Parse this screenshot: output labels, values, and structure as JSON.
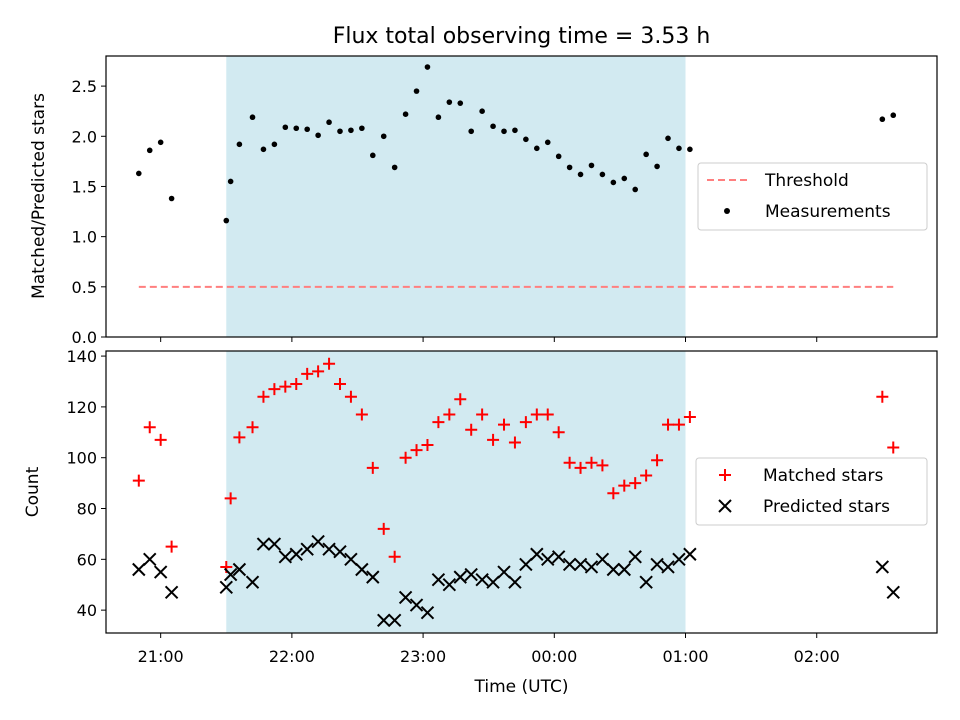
{
  "chart_data": [
    {
      "type": "scatter",
      "title": "Flux total observing time = 3.53 h",
      "ylabel": "Matched/Predicted stars",
      "xlabel": "",
      "ylim": [
        0,
        2.8
      ],
      "xlim": [
        "20:35",
        "02:55"
      ],
      "yticks": [
        "0.0",
        "0.5",
        "1.0",
        "1.5",
        "2.0",
        "2.5"
      ],
      "x_tick_labels_shown": false,
      "legend_position": "center-right",
      "shaded_interval": {
        "from": "21:30",
        "to": "01:00"
      },
      "series": [
        {
          "name": "Threshold",
          "style": "dashed-line",
          "color": "#ff7f7f",
          "points": [
            {
              "x": "20:50",
              "y": 0.5
            },
            {
              "x": "02:35",
              "y": 0.5
            }
          ]
        },
        {
          "name": "Measurements",
          "style": "dot",
          "color": "#000000",
          "points": [
            {
              "x": "20:50",
              "y": 1.63
            },
            {
              "x": "20:55",
              "y": 1.86
            },
            {
              "x": "21:00",
              "y": 1.94
            },
            {
              "x": "21:05",
              "y": 1.38
            },
            {
              "x": "21:30",
              "y": 1.16
            },
            {
              "x": "21:32",
              "y": 1.55
            },
            {
              "x": "21:36",
              "y": 1.92
            },
            {
              "x": "21:42",
              "y": 2.19
            },
            {
              "x": "21:47",
              "y": 1.87
            },
            {
              "x": "21:52",
              "y": 1.92
            },
            {
              "x": "21:57",
              "y": 2.09
            },
            {
              "x": "22:02",
              "y": 2.08
            },
            {
              "x": "22:07",
              "y": 2.07
            },
            {
              "x": "22:12",
              "y": 2.01
            },
            {
              "x": "22:17",
              "y": 2.14
            },
            {
              "x": "22:22",
              "y": 2.05
            },
            {
              "x": "22:27",
              "y": 2.06
            },
            {
              "x": "22:32",
              "y": 2.08
            },
            {
              "x": "22:37",
              "y": 1.81
            },
            {
              "x": "22:42",
              "y": 2.0
            },
            {
              "x": "22:47",
              "y": 1.69
            },
            {
              "x": "22:52",
              "y": 2.22
            },
            {
              "x": "22:57",
              "y": 2.45
            },
            {
              "x": "23:02",
              "y": 2.69
            },
            {
              "x": "23:07",
              "y": 2.19
            },
            {
              "x": "23:12",
              "y": 2.34
            },
            {
              "x": "23:17",
              "y": 2.33
            },
            {
              "x": "23:22",
              "y": 2.05
            },
            {
              "x": "23:27",
              "y": 2.25
            },
            {
              "x": "23:32",
              "y": 2.1
            },
            {
              "x": "23:37",
              "y": 2.05
            },
            {
              "x": "23:42",
              "y": 2.06
            },
            {
              "x": "23:47",
              "y": 1.97
            },
            {
              "x": "23:52",
              "y": 1.88
            },
            {
              "x": "23:57",
              "y": 1.94
            },
            {
              "x": "00:02",
              "y": 1.8
            },
            {
              "x": "00:07",
              "y": 1.69
            },
            {
              "x": "00:12",
              "y": 1.62
            },
            {
              "x": "00:17",
              "y": 1.71
            },
            {
              "x": "00:22",
              "y": 1.62
            },
            {
              "x": "00:27",
              "y": 1.54
            },
            {
              "x": "00:32",
              "y": 1.58
            },
            {
              "x": "00:37",
              "y": 1.47
            },
            {
              "x": "00:42",
              "y": 1.82
            },
            {
              "x": "00:47",
              "y": 1.7
            },
            {
              "x": "00:52",
              "y": 1.98
            },
            {
              "x": "00:57",
              "y": 1.88
            },
            {
              "x": "01:02",
              "y": 1.87
            },
            {
              "x": "02:30",
              "y": 2.17
            },
            {
              "x": "02:35",
              "y": 2.21
            }
          ]
        }
      ]
    },
    {
      "type": "scatter",
      "title": "",
      "ylabel": "Count",
      "xlabel": "Time (UTC)",
      "ylim": [
        31,
        142
      ],
      "xlim": [
        "20:35",
        "02:55"
      ],
      "yticks": [
        "40",
        "60",
        "80",
        "100",
        "120",
        "140"
      ],
      "xticks": [
        "21:00",
        "22:00",
        "23:00",
        "00:00",
        "01:00",
        "02:00"
      ],
      "legend_position": "center-right",
      "shaded_interval": {
        "from": "21:30",
        "to": "01:00"
      },
      "series": [
        {
          "name": "Matched stars",
          "style": "plus",
          "color": "#ff0000",
          "points": [
            {
              "x": "20:50",
              "y": 91
            },
            {
              "x": "20:55",
              "y": 112
            },
            {
              "x": "21:00",
              "y": 107
            },
            {
              "x": "21:05",
              "y": 65
            },
            {
              "x": "21:30",
              "y": 57
            },
            {
              "x": "21:32",
              "y": 84
            },
            {
              "x": "21:36",
              "y": 108
            },
            {
              "x": "21:42",
              "y": 112
            },
            {
              "x": "21:47",
              "y": 124
            },
            {
              "x": "21:52",
              "y": 127
            },
            {
              "x": "21:57",
              "y": 128
            },
            {
              "x": "22:02",
              "y": 129
            },
            {
              "x": "22:07",
              "y": 133
            },
            {
              "x": "22:12",
              "y": 134
            },
            {
              "x": "22:17",
              "y": 137
            },
            {
              "x": "22:22",
              "y": 129
            },
            {
              "x": "22:27",
              "y": 124
            },
            {
              "x": "22:32",
              "y": 117
            },
            {
              "x": "22:37",
              "y": 96
            },
            {
              "x": "22:42",
              "y": 72
            },
            {
              "x": "22:47",
              "y": 61
            },
            {
              "x": "22:52",
              "y": 100
            },
            {
              "x": "22:57",
              "y": 103
            },
            {
              "x": "23:02",
              "y": 105
            },
            {
              "x": "23:07",
              "y": 114
            },
            {
              "x": "23:12",
              "y": 117
            },
            {
              "x": "23:17",
              "y": 123
            },
            {
              "x": "23:22",
              "y": 111
            },
            {
              "x": "23:27",
              "y": 117
            },
            {
              "x": "23:32",
              "y": 107
            },
            {
              "x": "23:37",
              "y": 113
            },
            {
              "x": "23:42",
              "y": 106
            },
            {
              "x": "23:47",
              "y": 114
            },
            {
              "x": "23:52",
              "y": 117
            },
            {
              "x": "23:57",
              "y": 117
            },
            {
              "x": "00:02",
              "y": 110
            },
            {
              "x": "00:07",
              "y": 98
            },
            {
              "x": "00:12",
              "y": 96
            },
            {
              "x": "00:17",
              "y": 98
            },
            {
              "x": "00:22",
              "y": 97
            },
            {
              "x": "00:27",
              "y": 86
            },
            {
              "x": "00:32",
              "y": 89
            },
            {
              "x": "00:37",
              "y": 90
            },
            {
              "x": "00:42",
              "y": 93
            },
            {
              "x": "00:47",
              "y": 99
            },
            {
              "x": "00:52",
              "y": 113
            },
            {
              "x": "00:57",
              "y": 113
            },
            {
              "x": "01:02",
              "y": 116
            },
            {
              "x": "02:30",
              "y": 124
            },
            {
              "x": "02:35",
              "y": 104
            }
          ]
        },
        {
          "name": "Predicted stars",
          "style": "x",
          "color": "#000000",
          "points": [
            {
              "x": "20:50",
              "y": 56
            },
            {
              "x": "20:55",
              "y": 60
            },
            {
              "x": "21:00",
              "y": 55
            },
            {
              "x": "21:05",
              "y": 47
            },
            {
              "x": "21:30",
              "y": 49
            },
            {
              "x": "21:32",
              "y": 54
            },
            {
              "x": "21:36",
              "y": 56
            },
            {
              "x": "21:42",
              "y": 51
            },
            {
              "x": "21:47",
              "y": 66
            },
            {
              "x": "21:52",
              "y": 66
            },
            {
              "x": "21:57",
              "y": 61
            },
            {
              "x": "22:02",
              "y": 62
            },
            {
              "x": "22:07",
              "y": 64
            },
            {
              "x": "22:12",
              "y": 67
            },
            {
              "x": "22:17",
              "y": 64
            },
            {
              "x": "22:22",
              "y": 63
            },
            {
              "x": "22:27",
              "y": 60
            },
            {
              "x": "22:32",
              "y": 56
            },
            {
              "x": "22:37",
              "y": 53
            },
            {
              "x": "22:42",
              "y": 36
            },
            {
              "x": "22:47",
              "y": 36
            },
            {
              "x": "22:52",
              "y": 45
            },
            {
              "x": "22:57",
              "y": 42
            },
            {
              "x": "23:02",
              "y": 39
            },
            {
              "x": "23:07",
              "y": 52
            },
            {
              "x": "23:12",
              "y": 50
            },
            {
              "x": "23:17",
              "y": 53
            },
            {
              "x": "23:22",
              "y": 54
            },
            {
              "x": "23:27",
              "y": 52
            },
            {
              "x": "23:32",
              "y": 51
            },
            {
              "x": "23:37",
              "y": 55
            },
            {
              "x": "23:42",
              "y": 51
            },
            {
              "x": "23:47",
              "y": 58
            },
            {
              "x": "23:52",
              "y": 62
            },
            {
              "x": "23:57",
              "y": 60
            },
            {
              "x": "00:02",
              "y": 61
            },
            {
              "x": "00:07",
              "y": 58
            },
            {
              "x": "00:12",
              "y": 58
            },
            {
              "x": "00:17",
              "y": 57
            },
            {
              "x": "00:22",
              "y": 60
            },
            {
              "x": "00:27",
              "y": 56
            },
            {
              "x": "00:32",
              "y": 56
            },
            {
              "x": "00:37",
              "y": 61
            },
            {
              "x": "00:42",
              "y": 51
            },
            {
              "x": "00:47",
              "y": 58
            },
            {
              "x": "00:52",
              "y": 57
            },
            {
              "x": "00:57",
              "y": 60
            },
            {
              "x": "01:02",
              "y": 62
            },
            {
              "x": "02:30",
              "y": 57
            },
            {
              "x": "02:35",
              "y": 47
            }
          ]
        }
      ]
    }
  ],
  "colors": {
    "shade": "#add8e6",
    "threshold": "#ff7f7f",
    "matched": "#ff0000",
    "predicted": "#000000"
  }
}
